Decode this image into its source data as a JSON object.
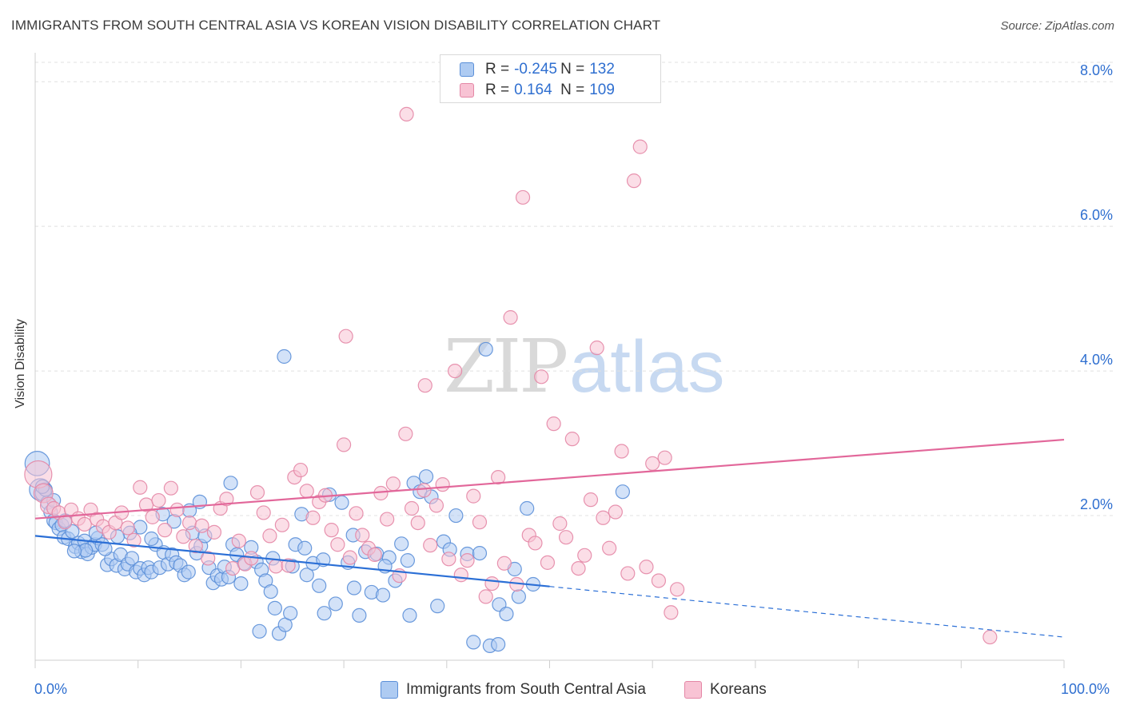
{
  "title": "IMMIGRANTS FROM SOUTH CENTRAL ASIA VS KOREAN VISION DISABILITY CORRELATION CHART",
  "source": "Source: ZipAtlas.com",
  "watermark": {
    "part1": "ZIP",
    "part2": "atlas"
  },
  "legend_top": {
    "rows": [
      {
        "r_label": "R =",
        "r_value": "-0.245",
        "n_label": "N =",
        "n_value": "132",
        "color": "#5b8fd8"
      },
      {
        "r_label": "R =",
        "r_value": "0.164",
        "n_label": "N =",
        "n_value": "109",
        "color": "#e487a6"
      }
    ]
  },
  "chart_data": {
    "type": "scatter",
    "title": "IMMIGRANTS FROM SOUTH CENTRAL ASIA VS KOREAN VISION DISABILITY CORRELATION CHART",
    "xlabel": "",
    "ylabel": "Vision Disability",
    "xlim": [
      0,
      100
    ],
    "ylim": [
      0,
      8.4
    ],
    "x_tick_labels": [
      "0.0%",
      "100.0%"
    ],
    "y_ticks": [
      2,
      4,
      6,
      8
    ],
    "y_tick_labels": [
      "2.0%",
      "4.0%",
      "6.0%",
      "8.0%"
    ],
    "grid": "horizontal dashed",
    "legend_placement": "bottom",
    "series": [
      {
        "name": "Immigrants from South Central Asia",
        "color": "#5b8fd8",
        "fill": "#aecbf2",
        "trend": {
          "x0": 0,
          "y0": 1.72,
          "x1": 50,
          "y1": 1.02,
          "dashed_to_x": 100,
          "dashed_to_y": 0.32
        },
        "points": [
          [
            0.2,
            2.72,
            1.8
          ],
          [
            0.5,
            2.36,
            1.6
          ],
          [
            0.8,
            2.31,
            1.2
          ],
          [
            1.2,
            2.18,
            1
          ],
          [
            1.5,
            2.05,
            1
          ],
          [
            1.8,
            1.93,
            1
          ],
          [
            2.0,
            1.9,
            1
          ],
          [
            2.3,
            1.82,
            1
          ],
          [
            2.6,
            1.87,
            1
          ],
          [
            2.8,
            1.7,
            1
          ],
          [
            3.2,
            1.68,
            1
          ],
          [
            3.6,
            1.78,
            1
          ],
          [
            3.9,
            1.57,
            1
          ],
          [
            4.2,
            1.62,
            1
          ],
          [
            4.5,
            1.5,
            1
          ],
          [
            4.8,
            1.65,
            1
          ],
          [
            5.1,
            1.47,
            1
          ],
          [
            5.5,
            1.56,
            1
          ],
          [
            5.8,
            1.6,
            1
          ],
          [
            6.1,
            1.69,
            1
          ],
          [
            6.5,
            1.6,
            1
          ],
          [
            7.0,
            1.32,
            1
          ],
          [
            7.4,
            1.4,
            1
          ],
          [
            7.9,
            1.31,
            1
          ],
          [
            8.3,
            1.46,
            1
          ],
          [
            8.7,
            1.26,
            1
          ],
          [
            9.0,
            1.33,
            1
          ],
          [
            9.4,
            1.41,
            1
          ],
          [
            9.8,
            1.22,
            1
          ],
          [
            10.2,
            1.27,
            1
          ],
          [
            10.6,
            1.18,
            1
          ],
          [
            11.0,
            1.28,
            1
          ],
          [
            11.3,
            1.22,
            1
          ],
          [
            11.7,
            1.6,
            1
          ],
          [
            12.1,
            1.28,
            1
          ],
          [
            12.5,
            1.49,
            1
          ],
          [
            12.9,
            1.33,
            1
          ],
          [
            13.3,
            1.46,
            1
          ],
          [
            13.7,
            1.35,
            1
          ],
          [
            14.1,
            1.31,
            1
          ],
          [
            14.5,
            1.18,
            1
          ],
          [
            14.9,
            1.22,
            1
          ],
          [
            15.3,
            1.76,
            1
          ],
          [
            15.7,
            1.48,
            1
          ],
          [
            16.1,
            1.58,
            1
          ],
          [
            16.5,
            1.72,
            1
          ],
          [
            16.9,
            1.28,
            1
          ],
          [
            17.3,
            1.07,
            1
          ],
          [
            17.7,
            1.17,
            1
          ],
          [
            18.1,
            1.12,
            1
          ],
          [
            18.4,
            1.29,
            1
          ],
          [
            18.8,
            1.15,
            1
          ],
          [
            19.2,
            1.6,
            1
          ],
          [
            19.6,
            1.46,
            1
          ],
          [
            20.0,
            1.06,
            1
          ],
          [
            20.3,
            1.34,
            1
          ],
          [
            19.0,
            2.45,
            1
          ],
          [
            16.0,
            2.19,
            1
          ],
          [
            15.0,
            2.07,
            1
          ],
          [
            13.5,
            1.92,
            1
          ],
          [
            12.4,
            2.02,
            1
          ],
          [
            11.3,
            1.68,
            1
          ],
          [
            10.2,
            1.84,
            1
          ],
          [
            9.2,
            1.76,
            1
          ],
          [
            8.0,
            1.71,
            1
          ],
          [
            6.8,
            1.54,
            1
          ],
          [
            5.9,
            1.76,
            1
          ],
          [
            4.9,
            1.52,
            1
          ],
          [
            3.8,
            1.51,
            1
          ],
          [
            2.9,
            1.93,
            1
          ],
          [
            1.8,
            2.21,
            1
          ],
          [
            1.0,
            2.36,
            1
          ],
          [
            0.7,
            2.4,
            1
          ],
          [
            21.0,
            1.56,
            1
          ],
          [
            21.5,
            1.36,
            1
          ],
          [
            22.0,
            1.25,
            1
          ],
          [
            22.4,
            1.1,
            1
          ],
          [
            22.9,
            0.95,
            1
          ],
          [
            23.3,
            0.72,
            1
          ],
          [
            23.7,
            0.37,
            1
          ],
          [
            24.3,
            0.49,
            1
          ],
          [
            24.8,
            0.65,
            1
          ],
          [
            25.3,
            1.6,
            1
          ],
          [
            25.9,
            2.02,
            1
          ],
          [
            26.4,
            1.18,
            1
          ],
          [
            27.0,
            1.34,
            1
          ],
          [
            27.6,
            1.03,
            1
          ],
          [
            28.1,
            0.65,
            1
          ],
          [
            28.6,
            2.29,
            1
          ],
          [
            29.2,
            0.78,
            1
          ],
          [
            29.8,
            2.18,
            1
          ],
          [
            30.4,
            1.35,
            1
          ],
          [
            30.9,
            1.73,
            1
          ],
          [
            31.5,
            0.62,
            1
          ],
          [
            32.1,
            1.5,
            1
          ],
          [
            32.7,
            0.94,
            1
          ],
          [
            33.2,
            1.47,
            1
          ],
          [
            33.8,
            0.9,
            1
          ],
          [
            34.4,
            1.42,
            1
          ],
          [
            35.0,
            1.1,
            1
          ],
          [
            35.6,
            1.61,
            1
          ],
          [
            36.2,
            1.38,
            1
          ],
          [
            36.8,
            2.45,
            1
          ],
          [
            37.4,
            2.33,
            1
          ],
          [
            38.0,
            2.54,
            1
          ],
          [
            38.5,
            2.26,
            1
          ],
          [
            39.1,
            0.75,
            1
          ],
          [
            39.7,
            1.64,
            1
          ],
          [
            40.3,
            1.53,
            1
          ],
          [
            40.9,
            2.0,
            1
          ],
          [
            42.0,
            1.47,
            1
          ],
          [
            42.6,
            0.25,
            1
          ],
          [
            43.2,
            1.48,
            1
          ],
          [
            44.2,
            0.2,
            1
          ],
          [
            45.1,
            0.77,
            1
          ],
          [
            46.6,
            1.26,
            1
          ],
          [
            47.8,
            2.1,
            1
          ],
          [
            48.4,
            1.05,
            1
          ],
          [
            47.0,
            0.88,
            1
          ],
          [
            45.8,
            0.64,
            1
          ],
          [
            43.8,
            4.3,
            1
          ],
          [
            36.4,
            0.62,
            1
          ],
          [
            34.0,
            1.3,
            1
          ],
          [
            24.2,
            4.2,
            1
          ],
          [
            57.1,
            2.33,
            1
          ],
          [
            45.0,
            0.22,
            1
          ],
          [
            25.0,
            1.3,
            1
          ],
          [
            26.2,
            1.55,
            1
          ],
          [
            23.1,
            1.41,
            1
          ],
          [
            21.8,
            0.4,
            1
          ],
          [
            31.0,
            1.0,
            1
          ],
          [
            28.0,
            1.39,
            1
          ]
        ]
      },
      {
        "name": "Koreans",
        "color": "#e487a6",
        "fill": "#f8c3d4",
        "trend": {
          "x0": 0,
          "y0": 1.96,
          "x1": 100,
          "y1": 3.05
        },
        "points": [
          [
            0.3,
            2.57,
            2.0
          ],
          [
            0.8,
            2.31,
            1.4
          ],
          [
            1.3,
            2.14,
            1.2
          ],
          [
            1.8,
            2.1,
            1
          ],
          [
            2.3,
            2.04,
            1
          ],
          [
            2.9,
            1.91,
            1
          ],
          [
            3.5,
            2.08,
            1
          ],
          [
            4.2,
            1.96,
            1
          ],
          [
            4.8,
            1.88,
            1
          ],
          [
            5.4,
            2.08,
            1
          ],
          [
            6.0,
            1.95,
            1
          ],
          [
            6.6,
            1.85,
            1
          ],
          [
            7.2,
            1.77,
            1
          ],
          [
            7.8,
            1.9,
            1
          ],
          [
            8.4,
            2.04,
            1
          ],
          [
            9.0,
            1.83,
            1
          ],
          [
            9.6,
            1.66,
            1
          ],
          [
            10.2,
            2.39,
            1
          ],
          [
            10.8,
            2.15,
            1
          ],
          [
            11.4,
            1.98,
            1
          ],
          [
            12.0,
            2.21,
            1
          ],
          [
            12.6,
            1.8,
            1
          ],
          [
            13.2,
            2.38,
            1
          ],
          [
            13.8,
            2.08,
            1
          ],
          [
            14.4,
            1.71,
            1
          ],
          [
            15.0,
            1.9,
            1
          ],
          [
            15.6,
            1.58,
            1
          ],
          [
            16.2,
            1.86,
            1
          ],
          [
            16.8,
            1.41,
            1
          ],
          [
            17.4,
            1.77,
            1
          ],
          [
            18.0,
            2.1,
            1
          ],
          [
            18.6,
            2.23,
            1
          ],
          [
            19.2,
            1.27,
            1
          ],
          [
            19.8,
            1.65,
            1
          ],
          [
            20.4,
            1.33,
            1
          ],
          [
            21.0,
            1.41,
            1
          ],
          [
            21.6,
            2.32,
            1
          ],
          [
            22.2,
            2.04,
            1
          ],
          [
            22.8,
            1.72,
            1
          ],
          [
            23.4,
            1.3,
            1
          ],
          [
            24.0,
            1.87,
            1
          ],
          [
            24.6,
            1.31,
            1
          ],
          [
            25.2,
            2.53,
            1
          ],
          [
            25.8,
            2.63,
            1
          ],
          [
            26.4,
            2.34,
            1
          ],
          [
            27.0,
            1.97,
            1
          ],
          [
            27.6,
            2.19,
            1
          ],
          [
            28.2,
            2.28,
            1
          ],
          [
            28.8,
            1.8,
            1
          ],
          [
            29.4,
            1.6,
            1
          ],
          [
            30.0,
            2.98,
            1
          ],
          [
            30.6,
            1.42,
            1
          ],
          [
            31.2,
            2.03,
            1
          ],
          [
            31.8,
            1.73,
            1
          ],
          [
            32.4,
            1.55,
            1
          ],
          [
            33.0,
            1.46,
            1
          ],
          [
            33.6,
            2.31,
            1
          ],
          [
            34.2,
            1.95,
            1
          ],
          [
            34.8,
            2.44,
            1
          ],
          [
            35.4,
            1.17,
            1
          ],
          [
            36.0,
            3.13,
            1
          ],
          [
            36.6,
            2.1,
            1
          ],
          [
            37.2,
            1.9,
            1
          ],
          [
            37.8,
            2.35,
            1
          ],
          [
            38.4,
            1.59,
            1
          ],
          [
            39.0,
            2.14,
            1
          ],
          [
            39.6,
            2.43,
            1
          ],
          [
            40.2,
            1.4,
            1
          ],
          [
            40.8,
            4.0,
            1
          ],
          [
            41.4,
            1.18,
            1
          ],
          [
            42.0,
            1.38,
            1
          ],
          [
            42.6,
            2.27,
            1
          ],
          [
            43.2,
            1.91,
            1
          ],
          [
            43.8,
            0.88,
            1
          ],
          [
            44.4,
            1.06,
            1
          ],
          [
            45.0,
            2.53,
            1
          ],
          [
            45.6,
            1.34,
            1
          ],
          [
            46.2,
            4.74,
            1
          ],
          [
            46.8,
            1.05,
            1
          ],
          [
            47.4,
            6.4,
            1
          ],
          [
            48.0,
            1.73,
            1
          ],
          [
            48.6,
            1.62,
            1
          ],
          [
            49.2,
            3.92,
            1
          ],
          [
            49.8,
            1.35,
            1
          ],
          [
            50.4,
            3.27,
            1
          ],
          [
            51.0,
            1.89,
            1
          ],
          [
            51.6,
            1.7,
            1
          ],
          [
            52.2,
            3.06,
            1
          ],
          [
            52.8,
            1.27,
            1
          ],
          [
            53.4,
            1.45,
            1
          ],
          [
            54.0,
            2.22,
            1
          ],
          [
            54.6,
            4.32,
            1
          ],
          [
            55.2,
            1.97,
            1
          ],
          [
            55.8,
            1.55,
            1
          ],
          [
            56.4,
            2.05,
            1
          ],
          [
            57.0,
            2.89,
            1
          ],
          [
            57.6,
            1.2,
            1
          ],
          [
            58.2,
            6.63,
            1
          ],
          [
            58.8,
            7.1,
            1
          ],
          [
            59.4,
            1.29,
            1
          ],
          [
            60.0,
            2.72,
            1
          ],
          [
            60.6,
            1.1,
            1
          ],
          [
            61.2,
            2.8,
            1
          ],
          [
            61.8,
            0.66,
            1
          ],
          [
            62.4,
            0.98,
            1
          ],
          [
            36.1,
            7.55,
            1
          ],
          [
            30.2,
            4.48,
            1
          ],
          [
            37.9,
            3.8,
            1
          ],
          [
            92.8,
            0.32,
            1
          ]
        ]
      }
    ]
  }
}
